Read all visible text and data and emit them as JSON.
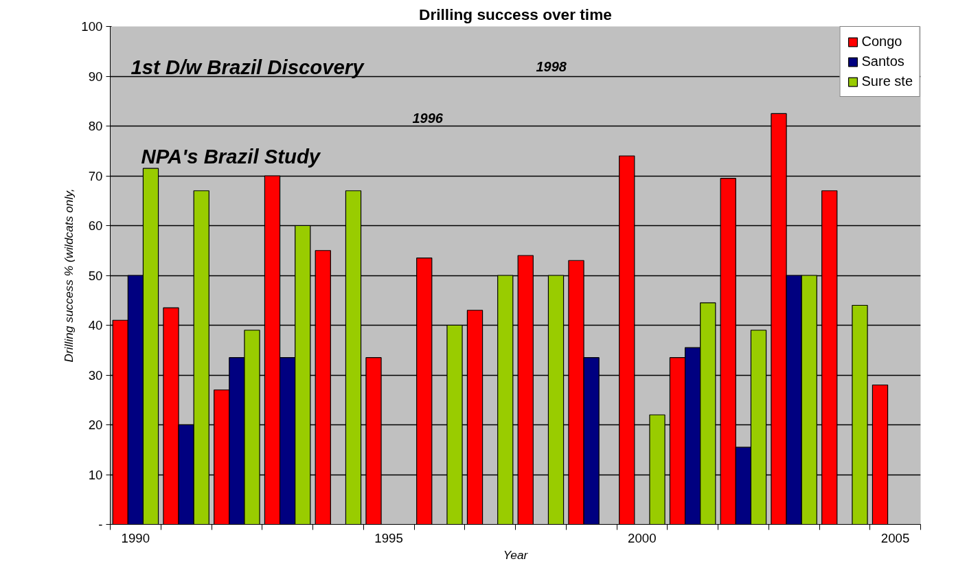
{
  "chart_data": {
    "type": "bar",
    "title": "Drilling success over time",
    "xlabel": "Year",
    "ylabel": "Drilling success % (wildcats only,",
    "categories": [
      "1990",
      null,
      null,
      null,
      null,
      "1995",
      null,
      null,
      null,
      null,
      "2000",
      null,
      null,
      null,
      null,
      "2005"
    ],
    "series": [
      {
        "name": "Congo",
        "color": "#ff0000",
        "values": [
          41,
          43.5,
          27,
          70,
          55,
          33.5,
          53.5,
          43,
          54,
          53,
          74,
          33.5,
          69.5,
          82.5,
          67,
          28
        ]
      },
      {
        "name": "Santos",
        "color": "#000080",
        "values": [
          50,
          20,
          33.5,
          33.5,
          null,
          null,
          null,
          null,
          null,
          33.5,
          null,
          35.5,
          15.5,
          50,
          null,
          null
        ]
      },
      {
        "name": "Sure ste",
        "color": "#99cc00",
        "values": [
          71.5,
          67,
          39,
          60,
          67,
          null,
          40,
          50,
          50,
          null,
          22,
          44.5,
          39,
          50,
          44,
          null
        ]
      }
    ],
    "ylim": [
      0,
      100
    ],
    "yticks": [
      {
        "value": 0,
        "label": "-"
      },
      10,
      20,
      30,
      40,
      50,
      60,
      70,
      80,
      90,
      100
    ],
    "grid": "y",
    "legend": "top right",
    "annotations": [
      "1st D/w Brazil Discovery",
      "1998",
      "1996",
      "NPA's Brazil Study"
    ]
  }
}
